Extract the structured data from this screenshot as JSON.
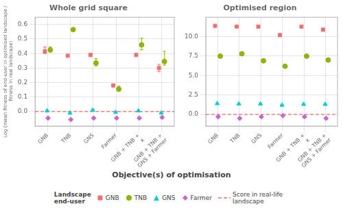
{
  "chart_data": [
    {
      "type": "scatter",
      "title": "Whole grid square",
      "ylabel": "Log (mean fitness of end-user in optimised landscape /\n fitness in real landscape)",
      "xlabel": "Objective(s) of optimisation",
      "categories": [
        "GNB",
        "TNB",
        "GNS",
        "Farmer",
        "GNB + TNB +\nx",
        "GNB + TNB +\nGNS + Farmer"
      ],
      "series": [
        {
          "name": "GNB",
          "color": "#F07070",
          "marker": "square",
          "values": [
            0.415,
            0.385,
            0.39,
            0.18,
            0.39,
            0.3
          ],
          "error_lo": [
            0.015,
            0.005,
            0.01,
            0.01,
            0.01,
            0.025
          ],
          "error_hi": [
            0.03,
            0.005,
            0.01,
            0.01,
            0.01,
            0.025
          ]
        },
        {
          "name": "TNB",
          "color": "#8DB600",
          "marker": "circle",
          "values": [
            0.425,
            0.565,
            0.335,
            0.155,
            0.46,
            0.345
          ],
          "error_lo": [
            0.015,
            0.005,
            0.02,
            0.015,
            0.035,
            0.025
          ],
          "error_hi": [
            0.02,
            0.005,
            0.03,
            0.02,
            0.045,
            0.07
          ]
        },
        {
          "name": "GNS",
          "color": "#00CED1",
          "marker": "triangle",
          "values": [
            0.005,
            -0.01,
            0.01,
            -0.005,
            0.005,
            -0.01
          ],
          "error_lo": [
            0.005,
            0.005,
            0.005,
            0.005,
            0.005,
            0.005
          ],
          "error_hi": [
            0.005,
            0.005,
            0.005,
            0.005,
            0.005,
            0.005
          ]
        },
        {
          "name": "Farmer",
          "color": "#CC66CC",
          "marker": "diamond",
          "values": [
            -0.045,
            -0.055,
            -0.045,
            -0.045,
            -0.045,
            -0.04
          ],
          "error_lo": [
            0.005,
            0.005,
            0.005,
            0.005,
            0.005,
            0.005
          ],
          "error_hi": [
            0.005,
            0.005,
            0.005,
            0.005,
            0.005,
            0.005
          ]
        }
      ],
      "reference_line": {
        "name": "Score in real-life\nlandscape",
        "value": 0,
        "color": "#FF6B6B",
        "line_style": "dashed"
      },
      "ylim": [
        -0.1,
        0.65
      ],
      "yticks": [
        {
          "value": 0.0,
          "label": "0.0"
        },
        0.1,
        0.2,
        0.3,
        0.4,
        0.5,
        0.6
      ],
      "grid": true,
      "legend": "bottom",
      "legend_title": "Landscape\nend-user"
    },
    {
      "type": "scatter",
      "title": "Optimised region",
      "categories": [
        "GNB",
        "TNB",
        "GNS",
        "Farmer",
        "GNB + TNB +\nx",
        "GNB + TNB +\nGNS + Farmer"
      ],
      "series": [
        {
          "name": "GNB",
          "color": "#F07070",
          "marker": "square",
          "values": [
            11.4,
            11.3,
            11.3,
            10.2,
            11.3,
            10.9
          ],
          "error_lo": [
            0.1,
            0.1,
            0.1,
            0.15,
            0.1,
            0.2
          ],
          "error_hi": [
            0.1,
            0.1,
            0.1,
            0.1,
            0.1,
            0.2
          ]
        },
        {
          "name": "TNB",
          "color": "#8DB600",
          "marker": "circle",
          "values": [
            7.5,
            7.8,
            6.9,
            6.2,
            7.5,
            7.0
          ],
          "error_lo": [
            0.15,
            0.1,
            0.1,
            0.2,
            0.15,
            0.2
          ],
          "error_hi": [
            0.15,
            0.1,
            0.1,
            0.2,
            0.15,
            0.2
          ]
        },
        {
          "name": "GNS",
          "color": "#00CED1",
          "marker": "triangle",
          "values": [
            1.4,
            1.35,
            1.35,
            1.2,
            1.3,
            1.3
          ],
          "error_lo": [
            0.05,
            0.05,
            0.05,
            0.05,
            0.05,
            0.05
          ],
          "error_hi": [
            0.05,
            0.05,
            0.05,
            0.05,
            0.05,
            0.05
          ]
        },
        {
          "name": "Farmer",
          "color": "#CC66CC",
          "marker": "diamond",
          "values": [
            -0.3,
            -0.5,
            -0.3,
            -0.15,
            -0.3,
            -0.5
          ],
          "error_lo": [
            0.1,
            0.1,
            0.1,
            0.05,
            0.1,
            0.1
          ],
          "error_hi": [
            0.1,
            0.1,
            0.1,
            0.05,
            0.1,
            0.1
          ]
        }
      ],
      "reference_line": {
        "name": "Score in real-life\nlandscape",
        "value": 0,
        "color": "#FF6B6B",
        "line_style": "dashed"
      },
      "ylim": [
        -1.5,
        12.5
      ],
      "yticks": [
        {
          "value": 0.0,
          "label": "0.0"
        },
        2.5,
        {
          "value": 5.0,
          "label": "5.0"
        },
        7.5,
        {
          "value": 10.0,
          "label": "10.0"
        }
      ],
      "grid": true
    }
  ]
}
